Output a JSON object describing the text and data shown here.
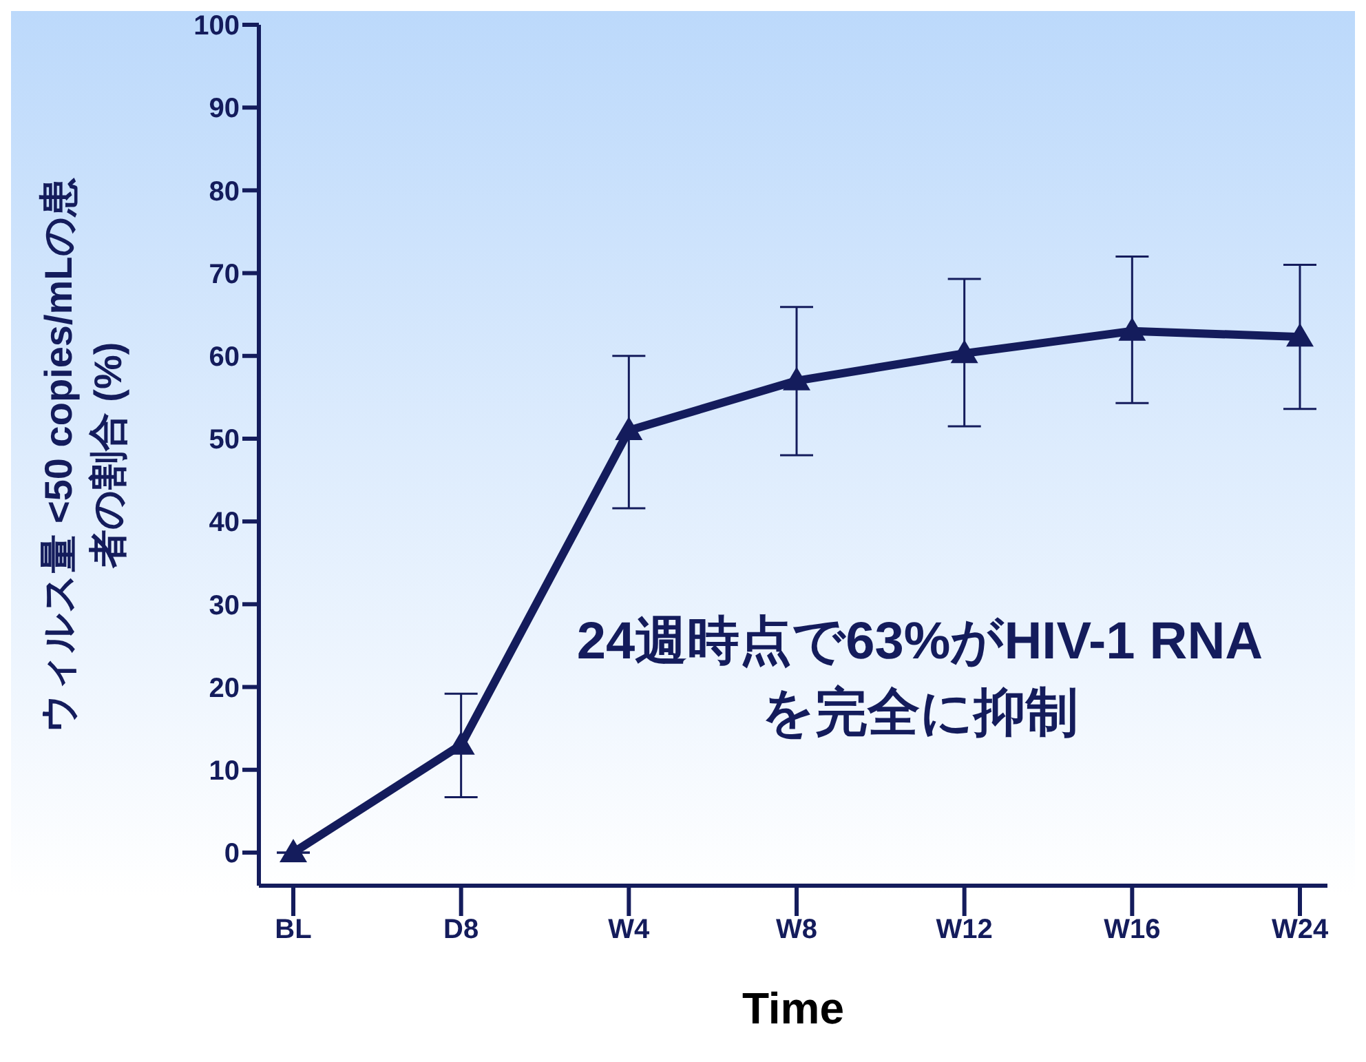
{
  "chart_data": {
    "type": "line",
    "xlabel": "Time",
    "ylabel": "ウィルス量 <50 copies/mLの患者の割合 (%)",
    "categories": [
      "BL",
      "D8",
      "W4",
      "W8",
      "W12",
      "W16",
      "W24"
    ],
    "ylim": [
      -4,
      100
    ],
    "yticks": [
      0,
      10,
      20,
      30,
      40,
      50,
      60,
      70,
      80,
      90,
      100
    ],
    "series": [
      {
        "color": "#141c5c",
        "values": [
          0,
          13,
          51,
          57,
          60.3,
          63,
          62.3
        ],
        "errors": [
          null,
          [
            6.7,
            19.2
          ],
          [
            41.6,
            60
          ],
          [
            48,
            65.9
          ],
          [
            51.5,
            69.3
          ],
          [
            54.3,
            72
          ],
          [
            53.6,
            71
          ]
        ]
      }
    ],
    "marker": "triangle",
    "line_style": "solid",
    "grid": false,
    "legend": false,
    "annotations": [
      "24週時点で63%がHIV-1 RNAを完全に抑制"
    ]
  }
}
